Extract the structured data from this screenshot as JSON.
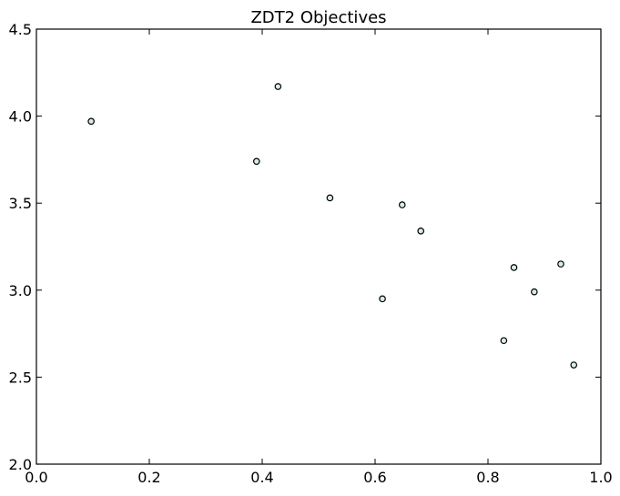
{
  "chart_data": {
    "type": "scatter",
    "title": "ZDT2 Objectives",
    "xlabel": "",
    "ylabel": "",
    "xlim": [
      0.0,
      1.0
    ],
    "ylim": [
      2.0,
      4.5
    ],
    "x_ticks": [
      "0.0",
      "0.2",
      "0.4",
      "0.6",
      "0.8",
      "1.0"
    ],
    "y_ticks": [
      "2.0",
      "2.5",
      "3.0",
      "3.5",
      "4.0",
      "4.5"
    ],
    "grid": false,
    "legend": "none",
    "marker_fill": "#d9ede6",
    "marker_edge": "#000000",
    "points": [
      {
        "x": 0.097,
        "y": 3.97
      },
      {
        "x": 0.39,
        "y": 3.74
      },
      {
        "x": 0.428,
        "y": 4.17
      },
      {
        "x": 0.52,
        "y": 3.53
      },
      {
        "x": 0.613,
        "y": 2.95
      },
      {
        "x": 0.648,
        "y": 3.49
      },
      {
        "x": 0.681,
        "y": 3.34
      },
      {
        "x": 0.828,
        "y": 2.71
      },
      {
        "x": 0.846,
        "y": 3.13
      },
      {
        "x": 0.882,
        "y": 2.99
      },
      {
        "x": 0.929,
        "y": 3.15
      },
      {
        "x": 0.952,
        "y": 2.57
      }
    ]
  }
}
